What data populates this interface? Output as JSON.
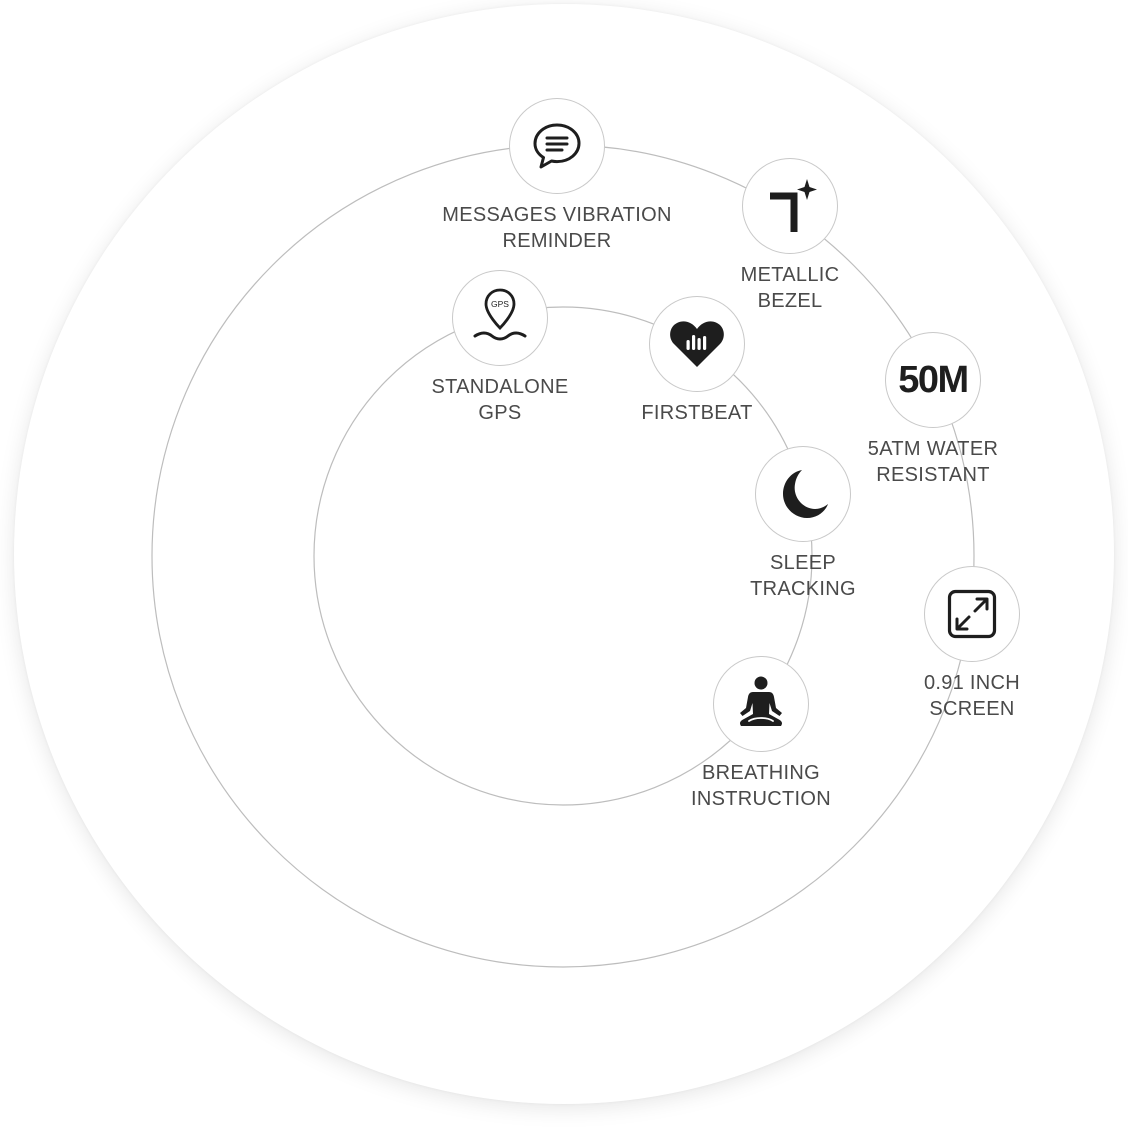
{
  "features": {
    "messages": {
      "label": "MESSAGES VIBRATION\nREMINDER",
      "icon": "speech-bubble-icon"
    },
    "bezel": {
      "label": "METALLIC\nBEZEL",
      "icon": "bezel-sparkle-icon"
    },
    "gps": {
      "label": "STANDALONE\nGPS",
      "icon": "gps-pin-icon",
      "icon_text": "GPS"
    },
    "firstbeat": {
      "label": "FIRSTBEAT",
      "icon": "heart-rate-icon"
    },
    "water": {
      "label": "5ATM WATER\nRESISTANT",
      "icon": "water-depth-icon",
      "icon_text": "50M"
    },
    "sleep": {
      "label": "SLEEP\nTRACKING",
      "icon": "moon-icon"
    },
    "screen": {
      "label": "0.91 INCH\nSCREEN",
      "icon": "expand-arrows-icon"
    },
    "breathing": {
      "label": "BREATHING\nINSTRUCTION",
      "icon": "meditation-icon"
    }
  },
  "colors": {
    "icon": "#1e1e1e",
    "label": "#4a4a4a",
    "ring": "#bdbdbd",
    "badge_border": "#c9c9c9"
  }
}
